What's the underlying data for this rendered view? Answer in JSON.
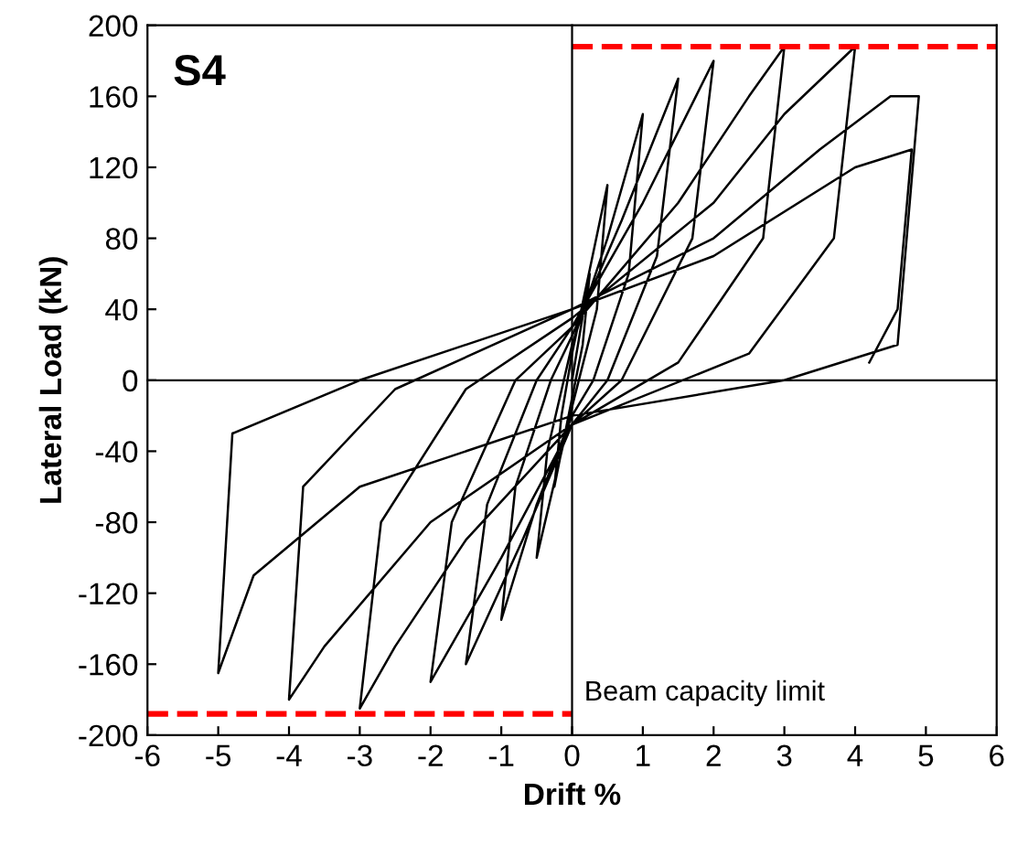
{
  "chart_data": {
    "type": "line",
    "title": "S4",
    "xlabel": "Drift %",
    "ylabel": "Lateral Load (kN)",
    "xlim": [
      -6,
      6
    ],
    "ylim": [
      -200,
      200
    ],
    "xticks": [
      -6,
      -5,
      -4,
      -3,
      -2,
      -1,
      0,
      1,
      2,
      3,
      4,
      5,
      6
    ],
    "yticks": [
      -200,
      -160,
      -120,
      -80,
      -40,
      0,
      40,
      80,
      120,
      160,
      200
    ],
    "grid": false,
    "marker": "none",
    "annotations": [
      {
        "text": "Beam capacity limit",
        "x": 0.1,
        "y": -188
      }
    ],
    "series": [
      {
        "color": "#000000",
        "line_style": "solid",
        "x": [
          0,
          0.25,
          0.15,
          0,
          -0.25,
          -0.15,
          0,
          0.5,
          0.35,
          0,
          -0.5,
          -0.35,
          0,
          0.5,
          1,
          0.8,
          0.3,
          0,
          -0.5,
          -1,
          -0.8,
          -0.3,
          0,
          0.7,
          1.5,
          1.2,
          0.5,
          0,
          -0.7,
          -1.5,
          -1.2,
          -0.5,
          0,
          1,
          2,
          1.7,
          0.7,
          0,
          -1,
          -2,
          -1.7,
          -0.8,
          0,
          1.5,
          2.5,
          3,
          2.7,
          1.5,
          0,
          -1.5,
          -2.5,
          -3,
          -2.7,
          -1.5,
          0,
          2,
          3,
          4,
          3.7,
          2.5,
          0,
          -2,
          -3.5,
          -4,
          -3.8,
          -2.5,
          0,
          2,
          3.5,
          4.5,
          4.9,
          4.6,
          3,
          0,
          -3,
          -4.5,
          -5,
          -4.8,
          -3,
          0,
          2,
          4,
          4.8,
          4.6,
          4.2
        ],
        "values": [
          0,
          60,
          20,
          -10,
          -60,
          -20,
          15,
          110,
          40,
          -15,
          -100,
          -40,
          20,
          80,
          150,
          60,
          0,
          -20,
          -70,
          -135,
          -60,
          0,
          25,
          90,
          170,
          70,
          0,
          -25,
          -90,
          -160,
          -70,
          0,
          30,
          100,
          180,
          80,
          0,
          -25,
          -100,
          -170,
          -80,
          0,
          30,
          100,
          160,
          188,
          80,
          10,
          -25,
          -90,
          -150,
          -185,
          -80,
          -5,
          35,
          100,
          150,
          188,
          80,
          15,
          -25,
          -80,
          -150,
          -180,
          -60,
          -5,
          40,
          80,
          130,
          160,
          160,
          20,
          0,
          -20,
          -60,
          -110,
          -165,
          -30,
          0,
          40,
          70,
          120,
          130,
          40,
          10
        ]
      },
      {
        "color": "#ff0000",
        "line_style": "dashed",
        "x": [
          0,
          6
        ],
        "values": [
          188,
          188
        ]
      },
      {
        "color": "#ff0000",
        "line_style": "dashed",
        "x": [
          -6,
          0
        ],
        "values": [
          -188,
          -188
        ]
      }
    ]
  }
}
